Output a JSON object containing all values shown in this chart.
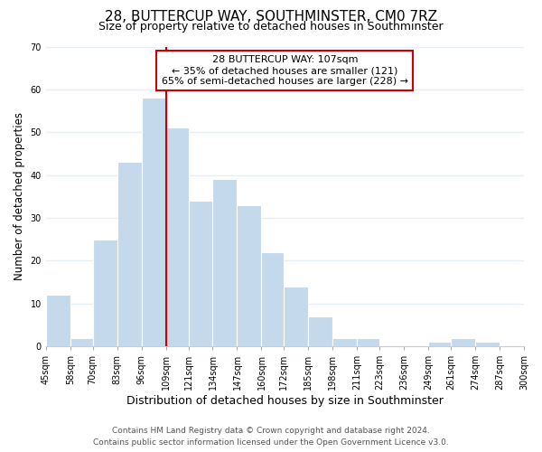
{
  "title": "28, BUTTERCUP WAY, SOUTHMINSTER, CM0 7RZ",
  "subtitle": "Size of property relative to detached houses in Southminster",
  "xlabel": "Distribution of detached houses by size in Southminster",
  "ylabel": "Number of detached properties",
  "bar_edges": [
    45,
    58,
    70,
    83,
    96,
    109,
    121,
    134,
    147,
    160,
    172,
    185,
    198,
    211,
    223,
    236,
    249,
    261,
    274,
    287,
    300
  ],
  "bar_heights": [
    12,
    2,
    25,
    43,
    58,
    51,
    34,
    39,
    33,
    22,
    14,
    7,
    2,
    2,
    0,
    0,
    1,
    2,
    1,
    0
  ],
  "tick_labels": [
    "45sqm",
    "58sqm",
    "70sqm",
    "83sqm",
    "96sqm",
    "109sqm",
    "121sqm",
    "134sqm",
    "147sqm",
    "160sqm",
    "172sqm",
    "185sqm",
    "198sqm",
    "211sqm",
    "223sqm",
    "236sqm",
    "249sqm",
    "261sqm",
    "274sqm",
    "287sqm",
    "300sqm"
  ],
  "bar_color": "#c5d9ed",
  "bar_edgecolor": "#ffffff",
  "property_line_x": 109,
  "annotation_line1": "28 BUTTERCUP WAY: 107sqm",
  "annotation_line2": "← 35% of detached houses are smaller (121)",
  "annotation_line3": "65% of semi-detached houses are larger (228) →",
  "annotation_box_facecolor": "#ffffff",
  "annotation_box_edgecolor": "#cc0000",
  "property_line_color": "#cc0000",
  "ylim": [
    0,
    70
  ],
  "yticks": [
    0,
    10,
    20,
    30,
    40,
    50,
    60,
    70
  ],
  "footer_line1": "Contains HM Land Registry data © Crown copyright and database right 2024.",
  "footer_line2": "Contains public sector information licensed under the Open Government Licence v3.0.",
  "background_color": "#ffffff",
  "plot_bg_color": "#ffffff",
  "grid_color": "#e8eef5",
  "title_fontsize": 11,
  "subtitle_fontsize": 9,
  "xlabel_fontsize": 9,
  "ylabel_fontsize": 8.5,
  "tick_fontsize": 7,
  "annotation_fontsize": 8,
  "footer_fontsize": 6.5
}
